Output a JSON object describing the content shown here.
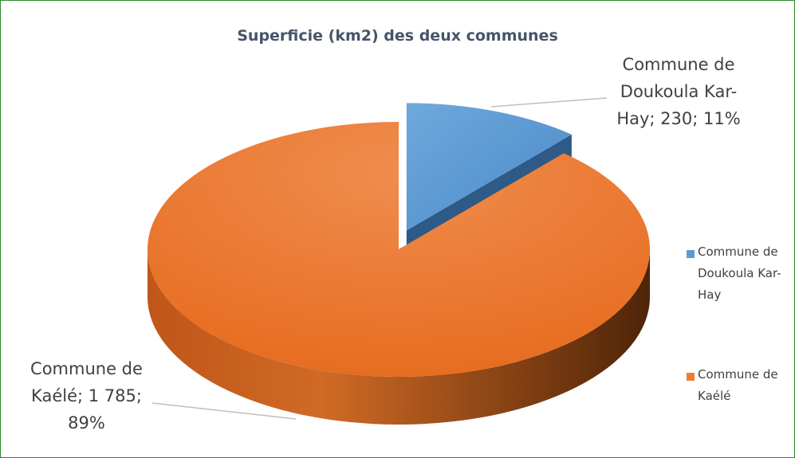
{
  "chart_data": {
    "type": "pie",
    "title": "Superficie (km2) des deux communes",
    "categories": [
      "Commune de Doukoula Kar-Hay",
      "Commune de Kaélé"
    ],
    "values": [
      230,
      1785
    ],
    "value_labels": [
      "Commune de Doukoula Kar-Hay; 230; 11%",
      "Commune de Kaélé; 1 785; 89%"
    ],
    "colors": [
      "#5b9bd5",
      "#ed7d31"
    ],
    "legend": "right"
  }
}
